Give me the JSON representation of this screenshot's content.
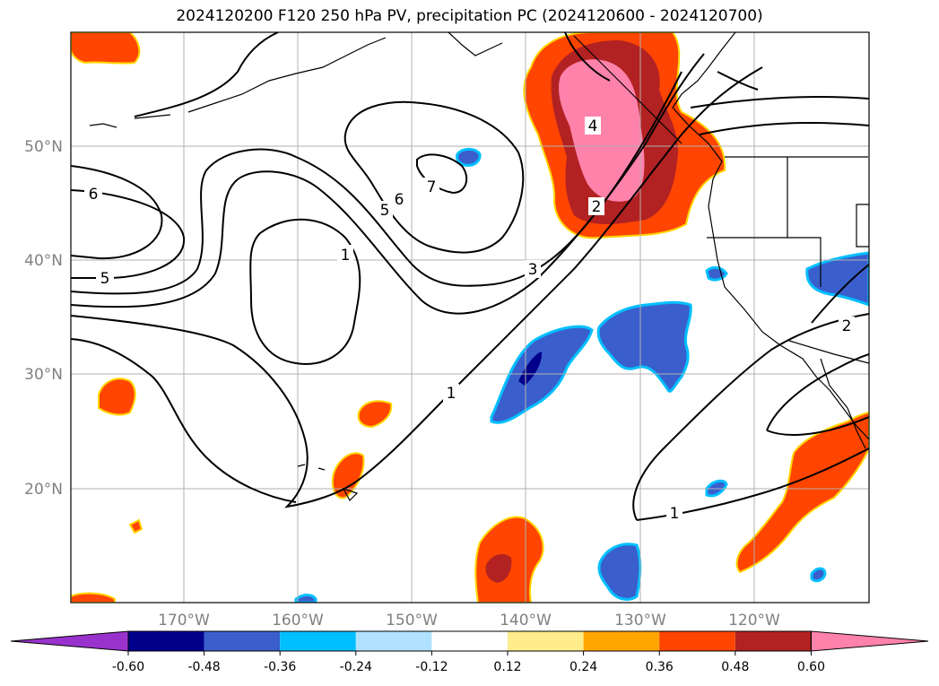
{
  "title": "2024120200 F120 250 hPa PV, precipitation PC (2024120600 - 2024120700)",
  "map": {
    "lon_labels": [
      "170°W",
      "160°W",
      "150°W",
      "140°W",
      "130°W",
      "120°W"
    ],
    "lat_labels": [
      "50°N",
      "40°N",
      "30°N",
      "20°N"
    ],
    "contour_labels": [
      "6",
      "5",
      "7",
      "6",
      "5",
      "1",
      "1",
      "3",
      "4",
      "2",
      "1",
      "2"
    ],
    "colors": {
      "land_outline": "#000000",
      "grid": "#b0b0b0",
      "tick_label": "#808080"
    }
  },
  "colorbar": {
    "levels": [
      "-0.60",
      "-0.48",
      "-0.36",
      "-0.24",
      "-0.12",
      "0.12",
      "0.24",
      "0.36",
      "0.48",
      "0.60"
    ],
    "colors": [
      "#9932cc",
      "#00008b",
      "#3a5fcd",
      "#00bfff",
      "#b0e2ff",
      "#ffffff",
      "#ffec8b",
      "#ffa500",
      "#ff4500",
      "#b22222",
      "#ff82ab"
    ]
  }
}
